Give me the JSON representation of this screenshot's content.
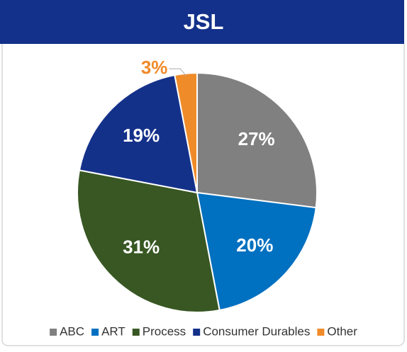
{
  "chart_data": {
    "type": "pie",
    "title": "JSL",
    "categories": [
      "ABC",
      "ART",
      "Process",
      "Consumer Durables",
      "Other"
    ],
    "values": [
      27,
      20,
      31,
      19,
      3
    ],
    "value_labels": [
      "27%",
      "20%",
      "31%",
      "19%",
      "3%"
    ],
    "colors": [
      "#808080",
      "#0070c0",
      "#385723",
      "#14318a",
      "#f08b2a"
    ],
    "legend": "bottom"
  }
}
